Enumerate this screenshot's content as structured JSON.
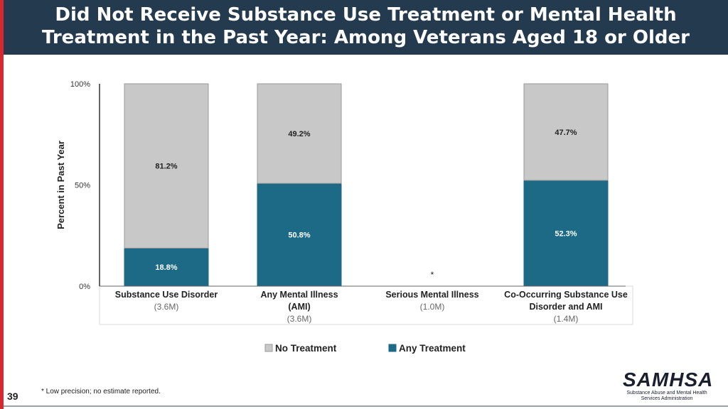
{
  "header": {
    "title_line1": "Did Not Receive Substance Use Treatment or Mental Health",
    "title_line2": "Treatment in the Past Year: Among Veterans Aged 18 or Older"
  },
  "colors": {
    "header_bg": "#243a4e",
    "accent_stripe": "#d7282f",
    "no_treatment": "#c8c8c8",
    "any_treatment": "#1c6a86"
  },
  "chart_data": {
    "type": "bar",
    "stacked": true,
    "ylabel": "Percent in Past Year",
    "ylim": [
      0,
      100
    ],
    "y_ticks": [
      "0%",
      "50%",
      "100%"
    ],
    "grid": false,
    "legend_position": "bottom",
    "categories": [
      {
        "lines": [
          "Substance Use Disorder"
        ],
        "sub": "(3.6M)"
      },
      {
        "lines": [
          "Any Mental Illness",
          "(AMI)"
        ],
        "sub": "(3.6M)"
      },
      {
        "lines": [
          "Serious Mental Illness"
        ],
        "sub": "(1.0M)"
      },
      {
        "lines": [
          "Co-Occurring Substance Use",
          "Disorder and AMI"
        ],
        "sub": "(1.4M)"
      }
    ],
    "series": [
      {
        "name": "Any Treatment",
        "color": "#1c6a86",
        "values": [
          18.8,
          50.8,
          null,
          52.3
        ],
        "labels": [
          "18.8%",
          "50.8%",
          "",
          "52.3%"
        ]
      },
      {
        "name": "No Treatment",
        "color": "#c8c8c8",
        "values": [
          81.2,
          49.2,
          null,
          47.7
        ],
        "labels": [
          "81.2%",
          "49.2%",
          "",
          "47.7%"
        ]
      }
    ],
    "missing_marker": "*"
  },
  "footnote": "* Low precision; no estimate reported.",
  "page_number": "39",
  "logo": {
    "word": "SAMHSA",
    "subtitle_line1": "Substance Abuse and Mental Health",
    "subtitle_line2": "Services Administration"
  }
}
